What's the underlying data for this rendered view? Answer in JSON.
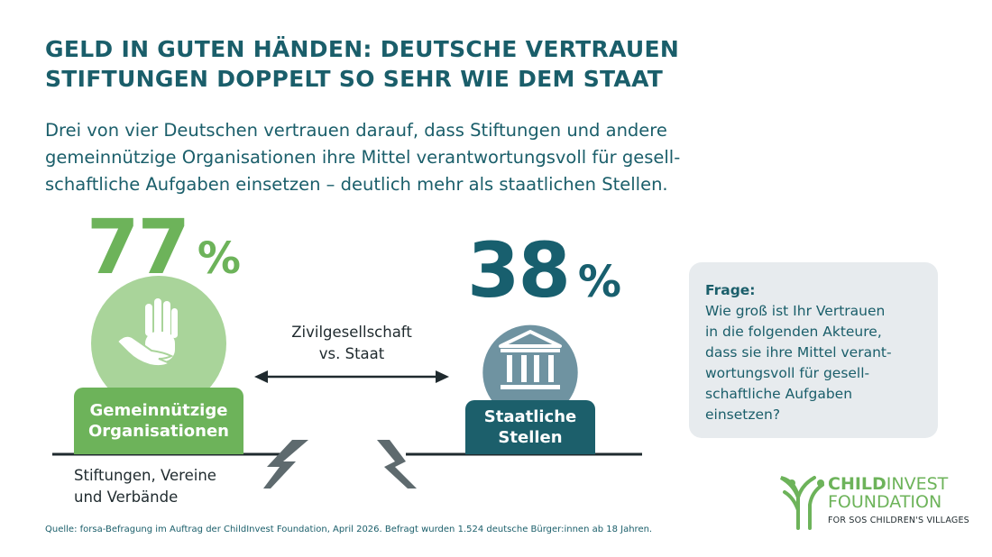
{
  "header": {
    "title_line1": "GELD IN GUTEN HÄNDEN: DEUTSCHE VERTRAUEN",
    "title_line2": "STIFTUNGEN DOPPELT SO SEHR WIE DEM STAAT",
    "subtitle_line1": "Drei von vier Deutschen vertrauen darauf, dass Stiftungen und andere",
    "subtitle_line2": "gemeinnützige Organisationen ihre Mittel verantwortungsvoll für gesell-",
    "subtitle_line3": "schaftliche Aufgaben einsetzen – deutlich mehr als staatlichen Stellen."
  },
  "chart_data": {
    "type": "bar",
    "unit": "%",
    "categories": [
      "Gemeinnützige Organisationen",
      "Staatliche Stellen"
    ],
    "values": [
      77,
      38
    ],
    "value_labels": [
      "77",
      "38"
    ],
    "category_lines": [
      [
        "Gemeinnützige",
        "Organisationen"
      ],
      [
        "Staatliche",
        "Stellen"
      ]
    ],
    "colors": [
      "#6db35a",
      "#1c5f6b"
    ],
    "comparison_label": [
      "Zivilgesellschaft",
      "vs. Staat"
    ],
    "category_note": [
      "Stiftungen, Vereine",
      "und Verbände"
    ]
  },
  "question": {
    "title": "Frage:",
    "lines": [
      "Wie groß ist Ihr Vertrauen",
      "in die folgenden Akteure,",
      "dass sie ihre Mittel verant-",
      "wortungsvoll für gesell-",
      "schaftliche Aufgaben",
      "einsetzen?"
    ]
  },
  "source": "Quelle: forsa-Befragung im Auftrag der ChildInvest Foundation, April 2026. Befragt wurden 1.524 deutsche Bürger:innen ab 18 Jahren.",
  "logo": {
    "line1_bold": "CHILD",
    "line1_rest": "INVEST",
    "line2": "FOUNDATION",
    "line3": "FOR SOS CHILDREN'S VILLAGES"
  },
  "icons": {
    "left_circle": "hand-icon",
    "right_circle": "government-building-icon"
  }
}
